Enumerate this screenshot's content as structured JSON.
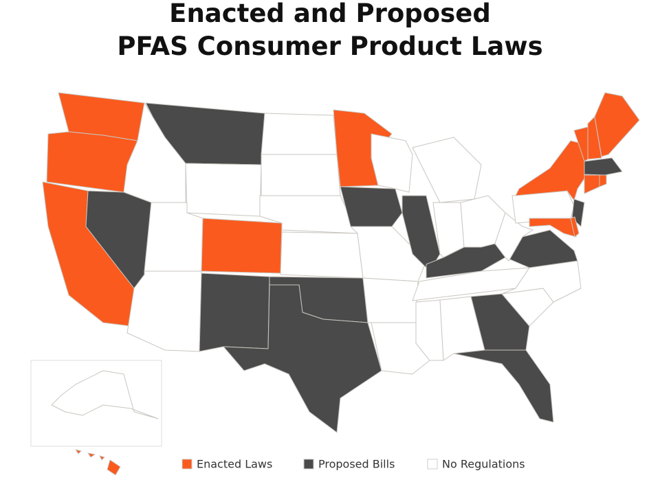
{
  "title": [
    "Enacted and Proposed",
    "PFAS Consumer Product Laws"
  ],
  "legend": [
    {
      "label": "Enacted Laws",
      "color": "#fa5a1e"
    },
    {
      "label": "Proposed Bills",
      "color": "#4a4a4a"
    },
    {
      "label": "No Regulations",
      "color": "#ffffff"
    }
  ]
}
